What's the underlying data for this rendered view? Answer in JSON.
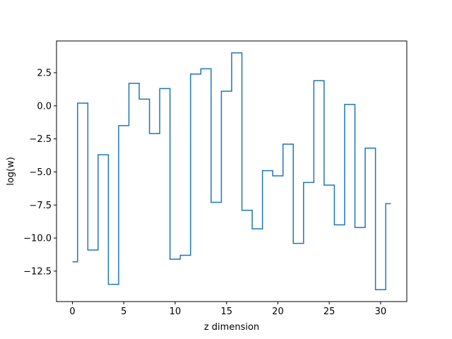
{
  "chart_data": {
    "type": "line",
    "drawstyle": "steps-mid",
    "title": "",
    "xlabel": "z dimension",
    "ylabel": "log(w)",
    "xlim": [
      -1.55,
      32.55
    ],
    "ylim": [
      -14.8,
      4.9
    ],
    "grid": false,
    "xticks": [
      0,
      5,
      10,
      15,
      20,
      25,
      30
    ],
    "xtick_labels": [
      "0",
      "5",
      "10",
      "15",
      "20",
      "25",
      "30"
    ],
    "yticks": [
      -12.5,
      -10.0,
      -7.5,
      -5.0,
      -2.5,
      0.0,
      2.5
    ],
    "ytick_labels": [
      "−12.5",
      "−10.0",
      "−7.5",
      "−5.0",
      "−2.5",
      "0.0",
      "2.5"
    ],
    "series": [
      {
        "color": "#1f77b4",
        "x": [
          0,
          1,
          2,
          3,
          4,
          5,
          6,
          7,
          8,
          9,
          10,
          11,
          12,
          13,
          14,
          15,
          16,
          17,
          18,
          19,
          20,
          21,
          22,
          23,
          24,
          25,
          26,
          27,
          28,
          29,
          30,
          31
        ],
        "y": [
          -11.8,
          0.2,
          -10.9,
          -3.7,
          -13.5,
          -1.5,
          1.7,
          0.5,
          -2.1,
          1.3,
          -11.6,
          -11.3,
          2.4,
          2.8,
          -7.3,
          1.1,
          4.0,
          -7.9,
          -9.3,
          -4.9,
          -5.3,
          -2.9,
          -10.4,
          -5.8,
          1.9,
          -6.0,
          -9.0,
          0.1,
          -9.2,
          -3.2,
          -13.9,
          -7.4
        ]
      }
    ]
  }
}
